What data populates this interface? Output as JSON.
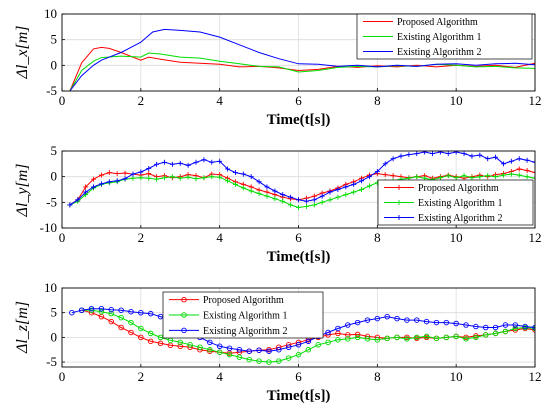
{
  "chart_data": [
    {
      "type": "line",
      "xlabel": "Time(t[s])",
      "ylabel": "Δl_x[m]",
      "xlim": [
        0,
        12
      ],
      "ylim": [
        -5,
        10
      ],
      "xticks": [
        "0",
        "2",
        "4",
        "6",
        "8",
        "10",
        "12"
      ],
      "yticks": [
        "-5",
        "0",
        "5",
        "10"
      ],
      "grid": true,
      "legend": "top-right",
      "marker": "none",
      "series": [
        {
          "name": "Proposed Algorithm",
          "color": "#ff0000",
          "x": [
            0.2,
            0.5,
            0.8,
            1.0,
            1.2,
            1.5,
            2.0,
            2.2,
            2.5,
            3.0,
            3.5,
            4.0,
            4.5,
            5.0,
            5.5,
            6.0,
            6.5,
            7.0,
            7.5,
            8.0,
            8.5,
            9.0,
            9.5,
            10.0,
            10.5,
            11.0,
            11.5,
            12.0
          ],
          "y": [
            -5,
            0.5,
            3.2,
            3.5,
            3.3,
            2.5,
            1.0,
            1.6,
            1.2,
            0.6,
            0.4,
            0.2,
            -0.3,
            -0.2,
            -0.5,
            -1.0,
            -0.8,
            -0.2,
            -0.4,
            -0.1,
            -0.3,
            0.0,
            -0.3,
            0.0,
            -0.2,
            0.0,
            -0.4,
            0.4
          ]
        },
        {
          "name": "Existing Algorithm 1",
          "color": "#00dd00",
          "x": [
            0.2,
            0.5,
            0.8,
            1.0,
            1.5,
            2.0,
            2.2,
            2.5,
            3.0,
            3.5,
            4.0,
            4.5,
            5.0,
            5.5,
            6.0,
            6.5,
            7.0,
            7.5,
            8.0,
            8.5,
            9.0,
            9.5,
            10.0,
            10.5,
            11.0,
            11.5,
            12.0
          ],
          "y": [
            -5,
            -1.0,
            0.8,
            1.5,
            1.8,
            1.6,
            2.4,
            2.2,
            1.6,
            1.4,
            0.8,
            0.3,
            -0.2,
            -0.3,
            -1.3,
            -1.0,
            -0.4,
            -0.2,
            -0.3,
            -0.1,
            -0.2,
            0.2,
            0.0,
            -0.3,
            -0.2,
            -0.5,
            -0.6
          ]
        },
        {
          "name": "Existing Algorithm 2",
          "color": "#0000ff",
          "x": [
            0.2,
            0.5,
            0.8,
            1.0,
            1.5,
            2.0,
            2.3,
            2.6,
            3.0,
            3.5,
            4.0,
            4.5,
            5.0,
            5.5,
            6.0,
            6.5,
            7.0,
            7.5,
            8.0,
            8.5,
            9.0,
            9.5,
            10.0,
            10.5,
            11.0,
            11.5,
            12.0
          ],
          "y": [
            -5,
            -2.0,
            0.0,
            1.0,
            2.5,
            4.5,
            6.5,
            7.0,
            6.8,
            6.5,
            5.5,
            4.0,
            2.5,
            1.3,
            0.3,
            0.2,
            -0.2,
            0.0,
            -0.3,
            0.0,
            -0.2,
            0.2,
            0.3,
            0.0,
            0.3,
            0.4,
            0.1
          ]
        }
      ]
    },
    {
      "type": "line",
      "xlabel": "Time(t[s])",
      "ylabel": "Δl_y[m]",
      "xlim": [
        0,
        12
      ],
      "ylim": [
        -10,
        5
      ],
      "xticks": [
        "0",
        "2",
        "4",
        "6",
        "8",
        "10",
        "12"
      ],
      "yticks": [
        "-10",
        "-5",
        "0",
        "5"
      ],
      "grid": true,
      "legend": "bottom-right",
      "marker": "plus",
      "series": [
        {
          "name": "Proposed Algorithm",
          "color": "#ff0000",
          "x": [
            0.2,
            0.4,
            0.6,
            0.8,
            1.0,
            1.2,
            1.4,
            1.6,
            1.8,
            2.0,
            2.2,
            2.4,
            2.6,
            2.8,
            3.0,
            3.2,
            3.4,
            3.6,
            3.8,
            4.0,
            4.2,
            4.4,
            4.6,
            4.8,
            5.0,
            5.2,
            5.4,
            5.6,
            5.8,
            6.0,
            6.2,
            6.4,
            6.6,
            6.8,
            7.0,
            7.2,
            7.4,
            7.6,
            7.8,
            8.0,
            8.2,
            8.4,
            8.6,
            8.8,
            9.0,
            9.2,
            9.4,
            9.6,
            9.8,
            10.0,
            10.2,
            10.4,
            10.6,
            10.8,
            11.0,
            11.2,
            11.4,
            11.6,
            11.8,
            12.0
          ],
          "y": [
            -5.5,
            -4.5,
            -2.0,
            -0.5,
            0.3,
            0.8,
            0.6,
            0.7,
            0.5,
            0.3,
            0.6,
            0.0,
            0.2,
            -0.2,
            0.0,
            0.4,
            0.2,
            -0.2,
            0.5,
            0.4,
            -0.3,
            -1.0,
            -1.5,
            -2.0,
            -2.6,
            -3.0,
            -3.5,
            -4.0,
            -4.3,
            -4.5,
            -4.2,
            -3.8,
            -3.2,
            -2.8,
            -2.2,
            -1.5,
            -1.0,
            -0.3,
            0.3,
            0.6,
            0.4,
            0.2,
            0.0,
            -0.2,
            0.0,
            0.2,
            -0.3,
            0.0,
            0.3,
            0.0,
            -0.3,
            0.0,
            0.3,
            0.0,
            0.4,
            0.6,
            1.0,
            1.5,
            1.2,
            0.8
          ]
        },
        {
          "name": "Existing Algorithm 1",
          "color": "#00dd00",
          "x": [
            0.2,
            0.4,
            0.6,
            0.8,
            1.0,
            1.2,
            1.4,
            1.6,
            1.8,
            2.0,
            2.2,
            2.4,
            2.6,
            2.8,
            3.0,
            3.2,
            3.4,
            3.6,
            3.8,
            4.0,
            4.2,
            4.4,
            4.6,
            4.8,
            5.0,
            5.2,
            5.4,
            5.6,
            5.8,
            6.0,
            6.2,
            6.4,
            6.6,
            6.8,
            7.0,
            7.2,
            7.4,
            7.6,
            7.8,
            8.0,
            8.2,
            8.4,
            8.6,
            8.8,
            9.0,
            9.2,
            9.4,
            9.6,
            9.8,
            10.0,
            10.2,
            10.4,
            10.6,
            10.8,
            11.0,
            11.2,
            11.4,
            11.6,
            11.8,
            12.0
          ],
          "y": [
            -5.5,
            -4.8,
            -3.5,
            -2.2,
            -1.5,
            -1.2,
            -1.0,
            -0.5,
            -0.3,
            -0.2,
            -0.3,
            -0.5,
            -0.2,
            0.0,
            -0.3,
            -0.1,
            -0.4,
            -0.2,
            0.0,
            -0.1,
            -0.8,
            -1.5,
            -2.2,
            -2.8,
            -3.3,
            -3.8,
            -4.3,
            -4.8,
            -5.5,
            -6.0,
            -5.8,
            -5.5,
            -5.0,
            -4.5,
            -4.0,
            -3.5,
            -3.0,
            -2.5,
            -1.8,
            -1.2,
            -1.0,
            -0.8,
            -0.5,
            -0.3,
            0.0,
            -0.3,
            -0.6,
            -0.2,
            0.2,
            -0.2,
            0.2,
            -0.2,
            0.0,
            0.2,
            0.0,
            0.3,
            0.5,
            0.3,
            0.0,
            -0.3
          ]
        },
        {
          "name": "Existing Algorithm 2",
          "color": "#0000ff",
          "x": [
            0.2,
            0.4,
            0.6,
            0.8,
            1.0,
            1.2,
            1.4,
            1.6,
            1.8,
            2.0,
            2.2,
            2.4,
            2.6,
            2.8,
            3.0,
            3.2,
            3.4,
            3.6,
            3.8,
            4.0,
            4.2,
            4.4,
            4.6,
            4.8,
            5.0,
            5.2,
            5.4,
            5.6,
            5.8,
            6.0,
            6.2,
            6.4,
            6.6,
            6.8,
            7.0,
            7.2,
            7.4,
            7.6,
            7.8,
            8.0,
            8.2,
            8.4,
            8.6,
            8.8,
            9.0,
            9.2,
            9.4,
            9.6,
            9.8,
            10.0,
            10.2,
            10.4,
            10.6,
            10.8,
            11.0,
            11.2,
            11.4,
            11.6,
            11.8,
            12.0
          ],
          "y": [
            -5.5,
            -4.5,
            -3.0,
            -2.0,
            -1.4,
            -1.0,
            -0.8,
            -0.4,
            0.5,
            0.9,
            1.6,
            2.4,
            2.8,
            2.4,
            2.6,
            2.2,
            2.8,
            3.3,
            2.8,
            3.0,
            1.5,
            0.8,
            0.5,
            0.0,
            -1.0,
            -2.0,
            -2.8,
            -3.5,
            -4.0,
            -4.5,
            -4.8,
            -4.5,
            -3.8,
            -3.0,
            -2.5,
            -2.0,
            -1.5,
            -0.8,
            0.0,
            1.0,
            2.5,
            3.5,
            4.0,
            4.3,
            4.5,
            4.8,
            4.5,
            4.8,
            4.5,
            4.8,
            4.5,
            4.0,
            4.2,
            3.5,
            3.8,
            2.5,
            3.0,
            3.5,
            3.2,
            2.8
          ]
        }
      ]
    },
    {
      "type": "line",
      "xlabel": "Time(t[s])",
      "ylabel": "Δl_z[m]",
      "xlim": [
        0,
        12
      ],
      "ylim": [
        -6,
        10
      ],
      "xticks": [
        "0",
        "2",
        "4",
        "6",
        "8",
        "10",
        "12"
      ],
      "yticks": [
        "-5",
        "0",
        "5",
        "10"
      ],
      "grid": true,
      "legend": "top-center",
      "marker": "circle",
      "series": [
        {
          "name": "Proposed Algorithm",
          "color": "#ff0000",
          "x": [
            0.5,
            0.75,
            1.0,
            1.25,
            1.5,
            1.75,
            2.0,
            2.25,
            2.5,
            2.75,
            3.0,
            3.25,
            3.5,
            3.75,
            4.0,
            4.25,
            4.5,
            4.75,
            5.0,
            5.25,
            5.5,
            5.75,
            6.0,
            6.25,
            6.5,
            6.75,
            7.0,
            7.25,
            7.5,
            7.75,
            8.0,
            8.25,
            8.5,
            8.75,
            9.0,
            9.25,
            9.5,
            9.75,
            10.0,
            10.25,
            10.5,
            10.75,
            11.0,
            11.25,
            11.5,
            11.75,
            12.0
          ],
          "y": [
            5.5,
            5.0,
            4.2,
            3.2,
            2.0,
            1.0,
            0.0,
            -0.8,
            -1.2,
            -1.6,
            -1.8,
            -2.0,
            -2.5,
            -2.8,
            -3.0,
            -3.2,
            -3.0,
            -2.8,
            -2.6,
            -2.5,
            -2.0,
            -1.5,
            -1.0,
            -0.5,
            0.0,
            0.5,
            0.8,
            0.5,
            0.6,
            0.2,
            0.0,
            -0.2,
            0.0,
            0.0,
            -0.2,
            0.0,
            -0.2,
            0.0,
            0.2,
            0.0,
            0.3,
            0.5,
            0.8,
            1.2,
            1.5,
            1.8,
            1.5
          ]
        },
        {
          "name": "Existing Algorithm 1",
          "color": "#00dd00",
          "x": [
            0.5,
            0.75,
            1.0,
            1.25,
            1.5,
            1.75,
            2.0,
            2.25,
            2.5,
            2.75,
            3.0,
            3.25,
            3.5,
            3.75,
            4.0,
            4.25,
            4.5,
            4.75,
            5.0,
            5.25,
            5.5,
            5.75,
            6.0,
            6.25,
            6.5,
            6.75,
            7.0,
            7.25,
            7.5,
            7.75,
            8.0,
            8.25,
            8.5,
            8.75,
            9.0,
            9.25,
            9.5,
            9.75,
            10.0,
            10.25,
            10.5,
            10.75,
            11.0,
            11.25,
            11.5,
            11.75,
            12.0
          ],
          "y": [
            5.5,
            5.5,
            5.2,
            4.8,
            4.0,
            3.0,
            1.8,
            0.8,
            0.0,
            -0.6,
            -1.0,
            -1.5,
            -2.0,
            -2.5,
            -3.0,
            -3.5,
            -4.0,
            -4.5,
            -4.8,
            -5.0,
            -4.8,
            -4.2,
            -3.5,
            -2.5,
            -1.5,
            -1.0,
            -0.5,
            -0.3,
            0.0,
            -0.3,
            -0.5,
            -0.2,
            0.0,
            -0.3,
            0.0,
            0.2,
            -0.2,
            0.0,
            0.2,
            -0.3,
            0.0,
            0.5,
            0.8,
            1.2,
            1.8,
            2.0,
            1.8
          ]
        },
        {
          "name": "Existing Algorithm 2",
          "color": "#0000ff",
          "x": [
            0.25,
            0.5,
            0.75,
            1.0,
            1.25,
            1.5,
            1.75,
            2.0,
            2.25,
            2.5,
            2.75,
            3.0,
            3.25,
            3.5,
            3.75,
            4.0,
            4.25,
            4.5,
            4.75,
            5.0,
            5.25,
            5.5,
            5.75,
            6.0,
            6.25,
            6.5,
            6.75,
            7.0,
            7.25,
            7.5,
            7.75,
            8.0,
            8.25,
            8.5,
            8.75,
            9.0,
            9.25,
            9.5,
            9.75,
            10.0,
            10.25,
            10.5,
            10.75,
            11.0,
            11.25,
            11.5,
            11.75,
            12.0
          ],
          "y": [
            5.0,
            5.5,
            5.8,
            5.8,
            5.6,
            5.5,
            5.2,
            5.0,
            4.8,
            4.2,
            3.5,
            2.5,
            1.2,
            0.0,
            -1.0,
            -1.8,
            -2.2,
            -2.5,
            -2.8,
            -2.6,
            -2.8,
            -2.5,
            -2.0,
            -1.5,
            -0.8,
            0.2,
            1.0,
            1.8,
            2.5,
            3.0,
            3.5,
            3.8,
            4.2,
            3.8,
            3.5,
            3.5,
            3.2,
            3.0,
            3.0,
            2.8,
            2.5,
            2.2,
            2.0,
            2.0,
            2.5,
            2.5,
            2.2,
            2.0
          ]
        }
      ]
    }
  ]
}
